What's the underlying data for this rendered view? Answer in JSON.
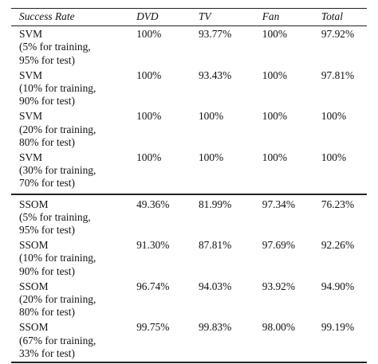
{
  "table": {
    "headers": {
      "name": "Success Rate",
      "dvd": "DVD",
      "tv": "TV",
      "fan": "Fan",
      "total": "Total"
    },
    "svm_rows": [
      {
        "method": "SVM",
        "train": "(5% for training,",
        "test": "95% for test)",
        "dvd": "100%",
        "tv": "93.77%",
        "fan": "100%",
        "total": "97.92%"
      },
      {
        "method": "SVM",
        "train": "(10% for training,",
        "test": "90% for test)",
        "dvd": "100%",
        "tv": "93.43%",
        "fan": "100%",
        "total": "97.81%"
      },
      {
        "method": "SVM",
        "train": "(20% for training,",
        "test": "80% for test)",
        "dvd": "100%",
        "tv": "100%",
        "fan": "100%",
        "total": "100%"
      },
      {
        "method": "SVM",
        "train": "(30% for training,",
        "test": "70% for test)",
        "dvd": "100%",
        "tv": "100%",
        "fan": "100%",
        "total": "100%"
      }
    ],
    "ssom_rows": [
      {
        "method": "SSOM",
        "train": "(5% for training,",
        "test": "95% for test)",
        "dvd": "49.36%",
        "tv": "81.99%",
        "fan": "97.34%",
        "total": "76.23%"
      },
      {
        "method": "SSOM",
        "train": "(10% for training,",
        "test": "90% for test)",
        "dvd": "91.30%",
        "tv": "87.81%",
        "fan": "97.69%",
        "total": "92.26%"
      },
      {
        "method": "SSOM",
        "train": "(20% for training,",
        "test": "80% for test)",
        "dvd": "96.74%",
        "tv": "94.03%",
        "fan": "93.92%",
        "total": "94.90%"
      },
      {
        "method": "SSOM",
        "train": "(67% for training,",
        "test": "33% for test)",
        "dvd": "99.75%",
        "tv": "99.83%",
        "fan": "98.00%",
        "total": "99.19%"
      }
    ]
  }
}
